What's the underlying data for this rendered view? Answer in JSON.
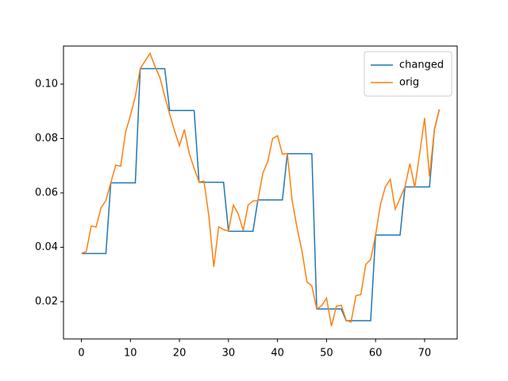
{
  "chart_data": {
    "type": "line",
    "x": [
      0,
      1,
      2,
      3,
      4,
      5,
      6,
      7,
      8,
      9,
      10,
      11,
      12,
      13,
      14,
      15,
      16,
      17,
      18,
      19,
      20,
      21,
      22,
      23,
      24,
      25,
      26,
      27,
      28,
      29,
      30,
      31,
      32,
      33,
      34,
      35,
      36,
      37,
      38,
      39,
      40,
      41,
      42,
      43,
      44,
      45,
      46,
      47,
      48,
      49,
      50,
      51,
      52,
      53,
      54,
      55,
      56,
      57,
      58,
      59,
      60,
      61,
      62,
      63,
      64,
      65,
      66,
      67,
      68,
      69,
      70,
      71,
      72,
      73
    ],
    "series": [
      {
        "name": "changed",
        "color": "#1f77b4",
        "values": [
          0.0377,
          0.0377,
          0.0377,
          0.0377,
          0.0377,
          0.0377,
          0.0637,
          0.0637,
          0.0637,
          0.0637,
          0.0637,
          0.0637,
          0.1057,
          0.1057,
          0.1057,
          0.1057,
          0.1057,
          0.1057,
          0.0903,
          0.0903,
          0.0903,
          0.0903,
          0.0903,
          0.0903,
          0.0639,
          0.0639,
          0.0639,
          0.0639,
          0.0639,
          0.0639,
          0.0459,
          0.0459,
          0.0459,
          0.0459,
          0.0459,
          0.0459,
          0.0574,
          0.0574,
          0.0574,
          0.0574,
          0.0574,
          0.0574,
          0.0744,
          0.0744,
          0.0744,
          0.0744,
          0.0744,
          0.0744,
          0.0173,
          0.0173,
          0.0173,
          0.0173,
          0.0173,
          0.0173,
          0.013,
          0.013,
          0.013,
          0.013,
          0.013,
          0.013,
          0.0445,
          0.0445,
          0.0445,
          0.0445,
          0.0445,
          0.0445,
          0.0622,
          0.0622,
          0.0622,
          0.0622,
          0.0622,
          0.0622,
          0.0833,
          0.0907
        ]
      },
      {
        "name": "orig",
        "color": "#ff7f0e",
        "values": [
          0.0377,
          0.0385,
          0.0478,
          0.0475,
          0.0545,
          0.0572,
          0.0637,
          0.0702,
          0.0698,
          0.0822,
          0.0885,
          0.0955,
          0.1057,
          0.1085,
          0.1113,
          0.1065,
          0.1025,
          0.0955,
          0.089,
          0.0828,
          0.0773,
          0.0833,
          0.0745,
          0.069,
          0.064,
          0.0643,
          0.0515,
          0.0328,
          0.0475,
          0.0465,
          0.046,
          0.0555,
          0.0522,
          0.0462,
          0.0555,
          0.057,
          0.0572,
          0.0672,
          0.0715,
          0.08,
          0.081,
          0.0742,
          0.0745,
          0.057,
          0.047,
          0.0385,
          0.0273,
          0.0258,
          0.0173,
          0.0185,
          0.0213,
          0.011,
          0.0183,
          0.0187,
          0.0132,
          0.0125,
          0.0222,
          0.0226,
          0.0337,
          0.0355,
          0.0445,
          0.0558,
          0.0622,
          0.065,
          0.054,
          0.058,
          0.0622,
          0.0708,
          0.062,
          0.0745,
          0.0875,
          0.066,
          0.0833,
          0.0907
        ]
      }
    ],
    "xlim": [
      -3.65,
      76.65
    ],
    "xticks": [
      0,
      10,
      20,
      30,
      40,
      50,
      60,
      70
    ],
    "ylim": [
      0.0063,
      0.114
    ],
    "yticks": [
      0.02,
      0.04,
      0.06,
      0.08,
      {
        "value": 0.1,
        "label": "0.10"
      }
    ],
    "legend": "upper right",
    "grid": false
  }
}
